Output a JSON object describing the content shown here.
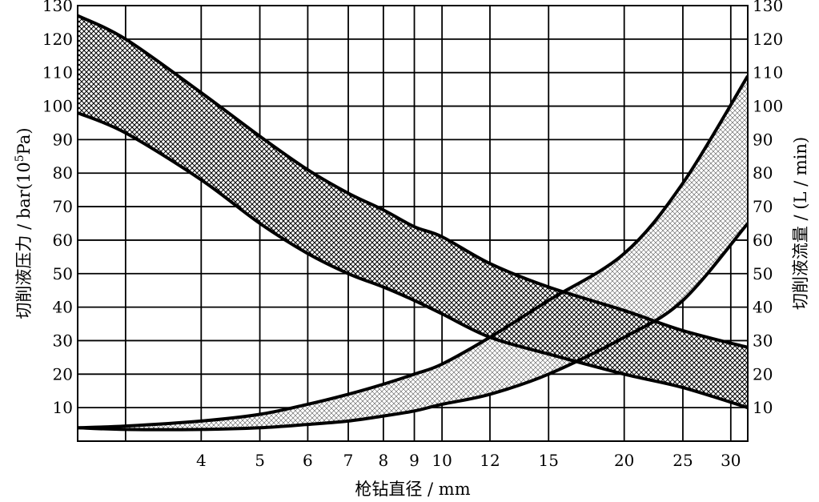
{
  "chart_data": {
    "type": "area",
    "xlabel": "枪钻直径 / mm",
    "ylabel_left_prefix": "切削液压力 / bar(10",
    "ylabel_left_sup": "5",
    "ylabel_left_suffix": "Pa)",
    "ylabel_right": "切削液流量 / (L / min)",
    "x_scale": "log",
    "xlim": [
      2.5,
      32
    ],
    "ylim": [
      0,
      130
    ],
    "grid": true,
    "x_ticks": [
      4,
      5,
      6,
      7,
      8,
      9,
      10,
      12,
      15,
      20,
      25,
      30
    ],
    "x_gridlines": [
      3,
      4,
      5,
      6,
      7,
      8,
      9,
      10,
      12,
      15,
      20,
      25,
      30
    ],
    "y_ticks_left": [
      10,
      20,
      30,
      40,
      50,
      60,
      70,
      80,
      90,
      100,
      110,
      120,
      130
    ],
    "y_ticks_right": [
      10,
      20,
      30,
      40,
      50,
      60,
      70,
      80,
      90,
      100,
      110,
      120,
      130
    ],
    "series": [
      {
        "role": "切削液压力",
        "axis": "left",
        "upper": {
          "x": [
            2.5,
            3,
            4,
            5,
            6,
            7,
            8,
            9,
            10,
            12,
            15,
            20,
            25,
            32
          ],
          "y": [
            127,
            120,
            104,
            91,
            81,
            74,
            69,
            64,
            61,
            53,
            46,
            39,
            33,
            28
          ]
        },
        "lower": {
          "x": [
            2.5,
            3,
            4,
            5,
            6,
            7,
            8,
            9,
            10,
            12,
            15,
            20,
            25,
            32
          ],
          "y": [
            98,
            92,
            78,
            65,
            56,
            50,
            46,
            42,
            38,
            31,
            26,
            20,
            16,
            10
          ]
        },
        "fill": "dense-crosshatch"
      },
      {
        "role": "切削液流量",
        "axis": "right",
        "upper": {
          "x": [
            2.5,
            3,
            4,
            5,
            6,
            7,
            8,
            9,
            10,
            12,
            15,
            20,
            25,
            32
          ],
          "y": [
            4,
            4.5,
            6,
            8,
            11,
            14,
            17,
            20,
            23,
            31,
            42,
            56,
            77,
            109
          ]
        },
        "lower": {
          "x": [
            2.5,
            3,
            4,
            5,
            6,
            7,
            8,
            9,
            10,
            12,
            15,
            20,
            25,
            32
          ],
          "y": [
            4,
            3.5,
            3.5,
            4,
            5,
            6,
            7.5,
            9,
            11,
            14,
            20,
            31,
            42,
            65
          ]
        },
        "fill": "light-crosshatch"
      }
    ]
  }
}
